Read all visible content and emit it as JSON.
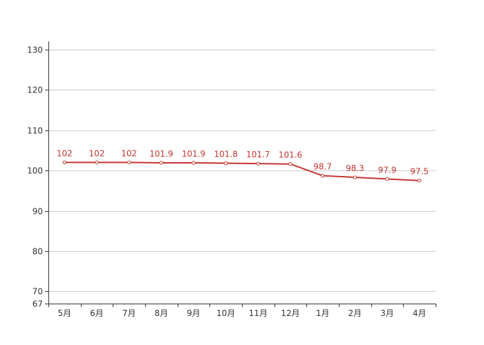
{
  "chart_data": {
    "type": "line",
    "categories": [
      "5月",
      "6月",
      "7月",
      "8月",
      "9月",
      "10月",
      "11月",
      "12月",
      "1月",
      "2月",
      "3月",
      "4月"
    ],
    "series": [
      {
        "values": [
          102,
          102,
          102,
          101.9,
          101.9,
          101.8,
          101.7,
          101.6,
          98.7,
          98.3,
          97.9,
          97.5
        ],
        "color": "#c23531"
      }
    ],
    "data_labels": [
      "102",
      "102",
      "102",
      "101.9",
      "101.9",
      "101.8",
      "101.7",
      "101.6",
      "98.7",
      "98.3",
      "97.9",
      "97.5"
    ],
    "y_ticks": [
      67,
      70,
      80,
      90,
      100,
      110,
      120,
      130
    ],
    "y_tick_labels": [
      "67",
      "70",
      "80",
      "90",
      "100",
      "110",
      "120",
      "130"
    ],
    "ylim": [
      67,
      132
    ],
    "grid": true,
    "title": "",
    "xlabel": "",
    "ylabel": "",
    "colors": {
      "line": "#c23531",
      "label": "#c23531",
      "grid": "#cccccc",
      "axis": "#333333",
      "text": "#333333"
    }
  }
}
